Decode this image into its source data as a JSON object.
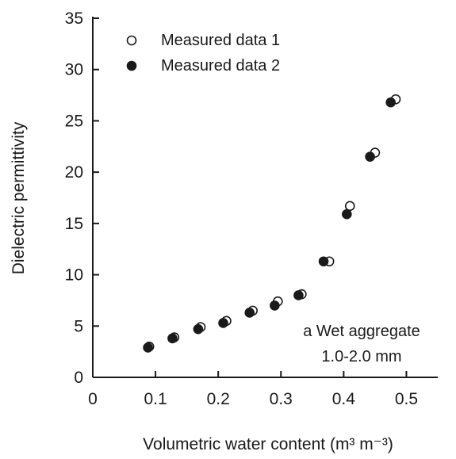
{
  "chart_data": {
    "type": "scatter",
    "title": "",
    "xlabel": "Volumetric water content (m³ m⁻³)",
    "ylabel": "Dielectric permittivity",
    "xlim": [
      0,
      0.55
    ],
    "ylim": [
      0,
      35
    ],
    "x_ticks": [
      "0",
      "0.1",
      "0.2",
      "0.3",
      "0.4",
      "0.5"
    ],
    "y_ticks": [
      "0",
      "5",
      "10",
      "15",
      "20",
      "25",
      "30",
      "35"
    ],
    "grid": false,
    "legend_position": "top-left",
    "annotation": {
      "line1": "a Wet aggregate",
      "line2": "1.0-2.0 mm"
    },
    "series": [
      {
        "name": "Measured data 1",
        "marker": "open-circle",
        "x": [
          0.09,
          0.13,
          0.172,
          0.213,
          0.255,
          0.295,
          0.333,
          0.377,
          0.41,
          0.45,
          0.483
        ],
        "y": [
          3.0,
          3.9,
          4.9,
          5.5,
          6.5,
          7.4,
          8.1,
          11.3,
          16.7,
          21.9,
          27.1
        ]
      },
      {
        "name": "Measured data 2",
        "marker": "filled-circle",
        "x": [
          0.088,
          0.127,
          0.168,
          0.208,
          0.25,
          0.29,
          0.328,
          0.368,
          0.405,
          0.442,
          0.475
        ],
        "y": [
          2.9,
          3.8,
          4.7,
          5.3,
          6.3,
          7.0,
          8.0,
          11.3,
          15.9,
          21.5,
          26.8
        ]
      }
    ],
    "colors": {
      "marker": "#1a1a1a",
      "axis": "#1a1a1a",
      "background": "#ffffff"
    }
  }
}
